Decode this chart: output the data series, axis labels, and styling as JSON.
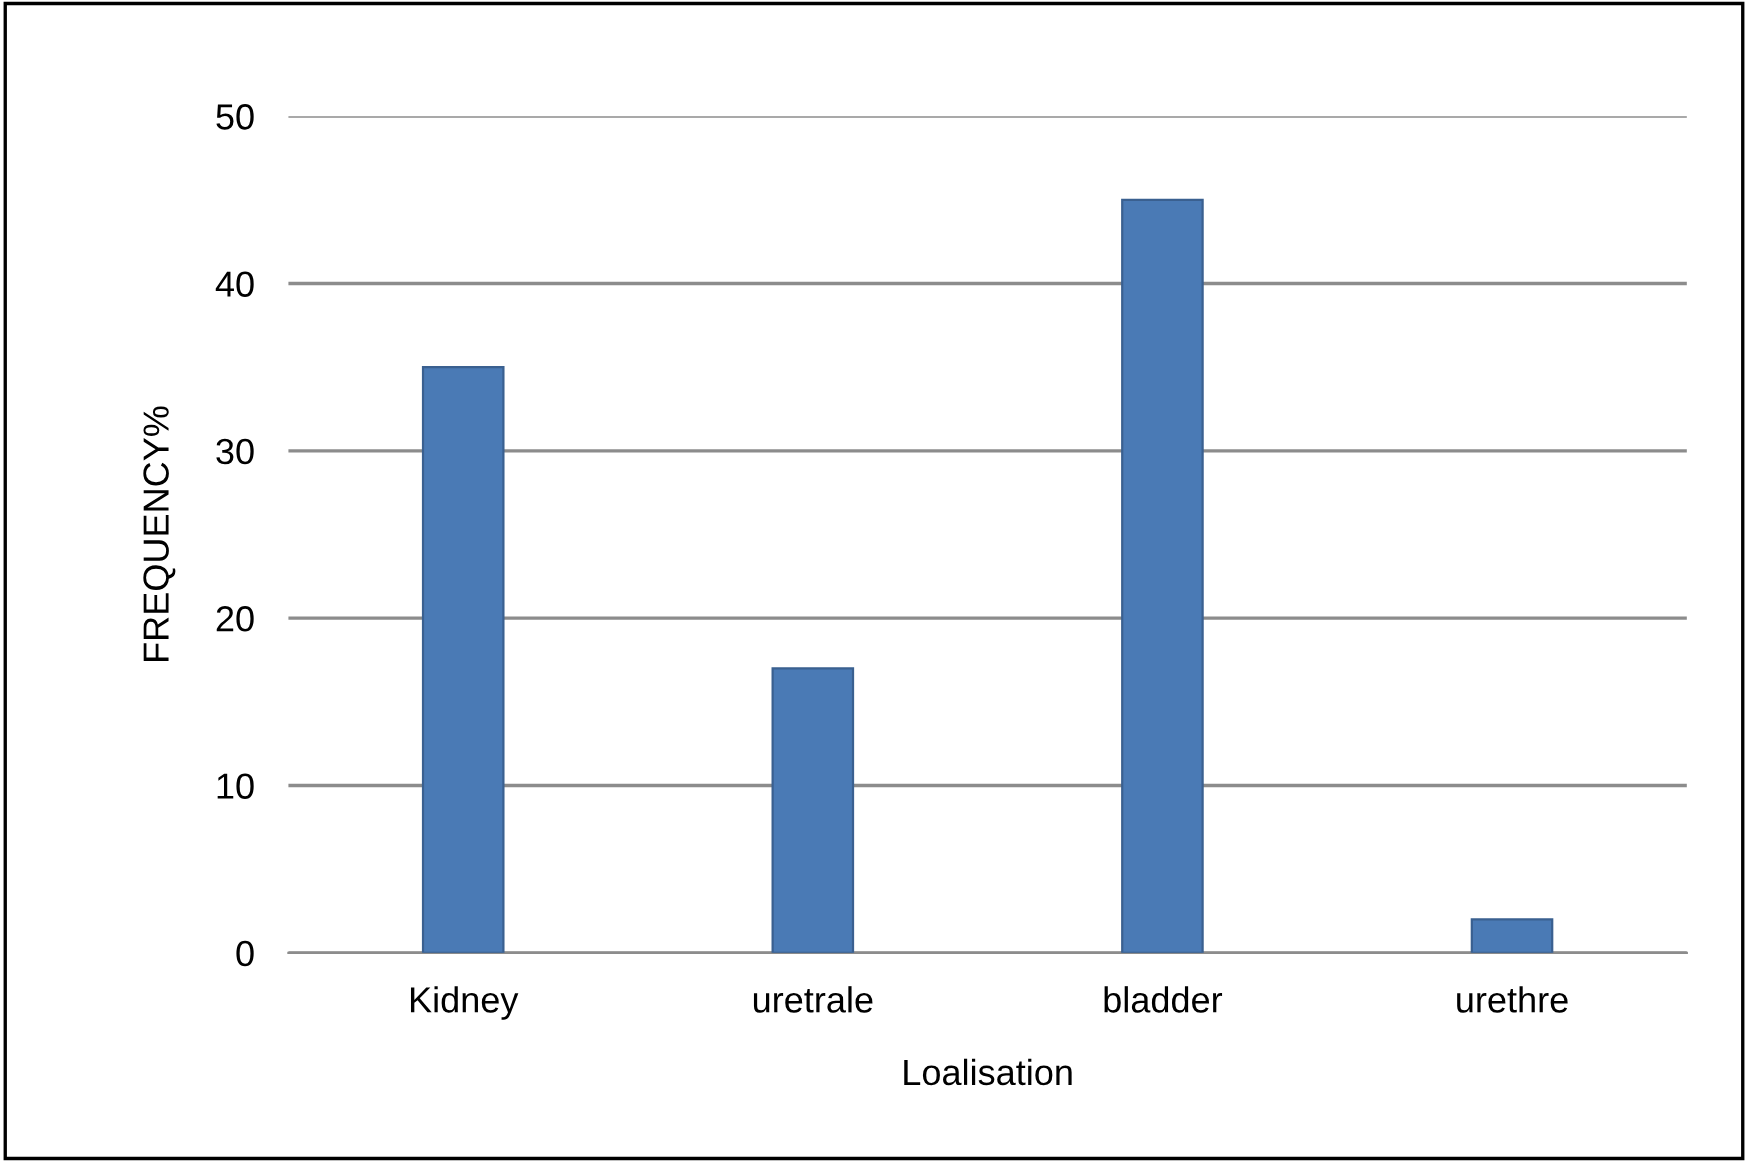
{
  "chart_data": {
    "type": "bar",
    "xlabel": "Loalisation",
    "ylabel": "FREQUENCY%",
    "categories": [
      "Kidney",
      "uretrale",
      "bladder",
      "urethre"
    ],
    "values": [
      35,
      17,
      45,
      2
    ],
    "color": "#4a7ab5",
    "ylim": [
      0,
      50
    ],
    "yticks": [
      0,
      10,
      20,
      30,
      40,
      50
    ],
    "grid": "y"
  }
}
